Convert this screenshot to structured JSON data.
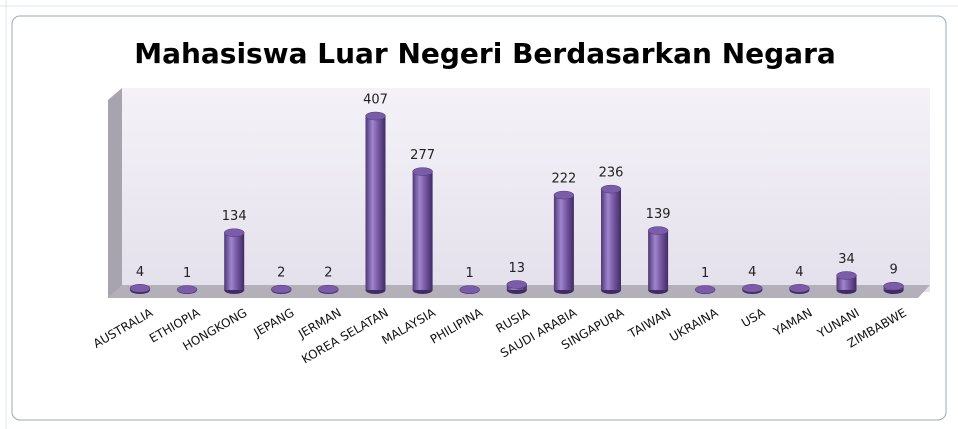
{
  "chart_data": {
    "type": "bar",
    "title": "Mahasiswa Luar Negeri Berdasarkan Negara",
    "categories": [
      "AUSTRALIA",
      "ETHIOPIA",
      "HONGKONG",
      "JEPANG",
      "JERMAN",
      "KOREA SELATAN",
      "MALAYSIA",
      "PHILIPINA",
      "RUSIA",
      "SAUDI ARABIA",
      "SINGAPURA",
      "TAIWAN",
      "UKRAINA",
      "USA",
      "YAMAN",
      "YUNANI",
      "ZIMBABWE"
    ],
    "values": [
      4,
      1,
      134,
      2,
      2,
      407,
      277,
      1,
      13,
      222,
      236,
      139,
      1,
      4,
      4,
      34,
      9
    ],
    "color": "#7b5ca8"
  }
}
